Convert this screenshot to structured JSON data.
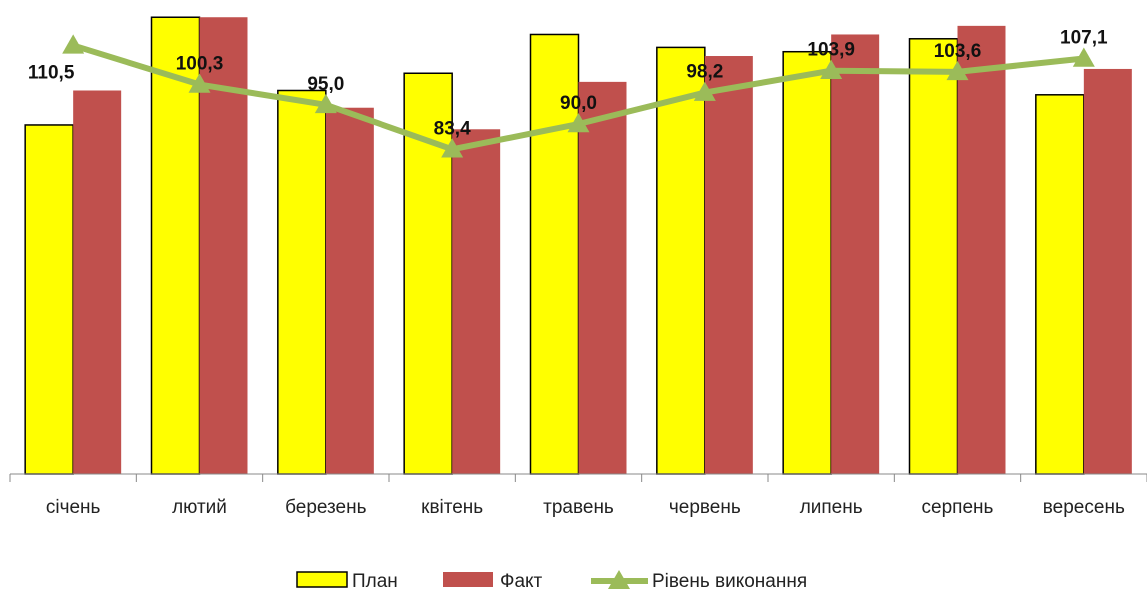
{
  "chart_data": {
    "type": "bar",
    "categories": [
      "січень",
      "лютий",
      "березень",
      "квітень",
      "травень",
      "червень",
      "липень",
      "серпень",
      "вересень"
    ],
    "series": [
      {
        "name": "План",
        "kind": "bar",
        "color": "#FFFF00",
        "values": [
          81,
          106,
          89,
          93,
          102,
          99,
          98,
          101,
          88
        ]
      },
      {
        "name": "Факт",
        "kind": "bar",
        "color": "#C0504D",
        "values": [
          89,
          106,
          85,
          80,
          91,
          97,
          102,
          104,
          94
        ]
      },
      {
        "name": "Рівень виконання",
        "kind": "line",
        "color": "#9BBB59",
        "values": [
          110.5,
          100.3,
          95.0,
          83.4,
          90.0,
          98.2,
          103.9,
          103.6,
          107.1
        ]
      }
    ],
    "data_labels": [
      "110,5",
      "100,3",
      "95,0",
      "83,4",
      "90,0",
      "98,2",
      "103,9",
      "103,6",
      "107,1"
    ],
    "ylim": [
      0,
      110
    ],
    "line_ylim": [
      0,
      115
    ],
    "grid": false,
    "legend": "bottom-center"
  }
}
